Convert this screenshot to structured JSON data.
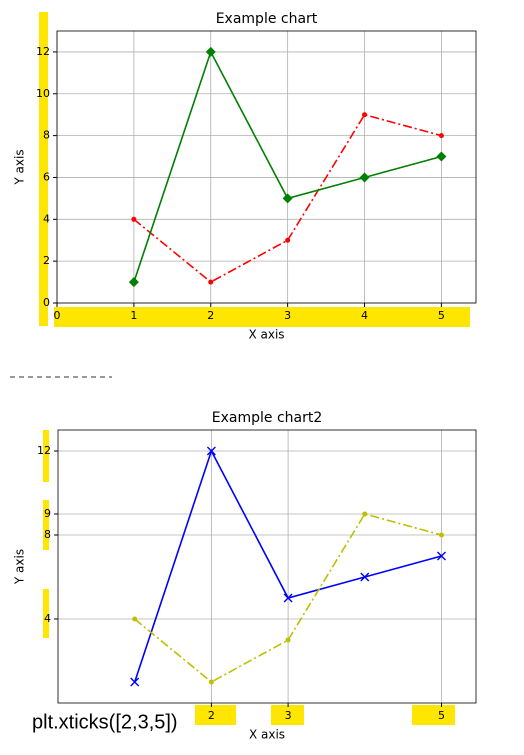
{
  "chart_data": [
    {
      "type": "line",
      "title": "Example chart",
      "x_label": "X axis",
      "y_label": "Y axis",
      "x": [
        1,
        2,
        3,
        4,
        5
      ],
      "series": [
        {
          "color": "#ff0000",
          "linestyle": "dashdot",
          "marker": "o",
          "values": [
            4,
            1,
            3,
            9,
            8
          ]
        },
        {
          "color": "#008000",
          "linestyle": "solid",
          "marker": "D",
          "values": [
            1,
            12,
            5,
            6,
            7
          ]
        }
      ],
      "xlim": [
        0,
        5.45
      ],
      "ylim": [
        0,
        13
      ],
      "xticks": [
        0,
        1,
        2,
        3,
        4,
        5
      ],
      "yticks": [
        0,
        2,
        4,
        6,
        8,
        10,
        12
      ],
      "grid": true
    },
    {
      "type": "line",
      "title": "Example chart2",
      "x_label": "X axis",
      "y_label": "Y axis",
      "annotation": "plt.xticks([2,3,5])",
      "x": [
        1,
        2,
        3,
        4,
        5
      ],
      "series": [
        {
          "color": "#0000ff",
          "linestyle": "solid",
          "marker": "x",
          "values": [
            1,
            12,
            5,
            6,
            7
          ]
        },
        {
          "color": "#bfbf00",
          "linestyle": "dashdot",
          "marker": "o",
          "values": [
            4,
            1,
            3,
            9,
            8
          ]
        }
      ],
      "xlim": [
        0,
        5.45
      ],
      "ylim": [
        0,
        13
      ],
      "xticks": [
        2,
        3,
        5
      ],
      "yticks": [
        4,
        8,
        9,
        12
      ],
      "grid": true
    }
  ]
}
